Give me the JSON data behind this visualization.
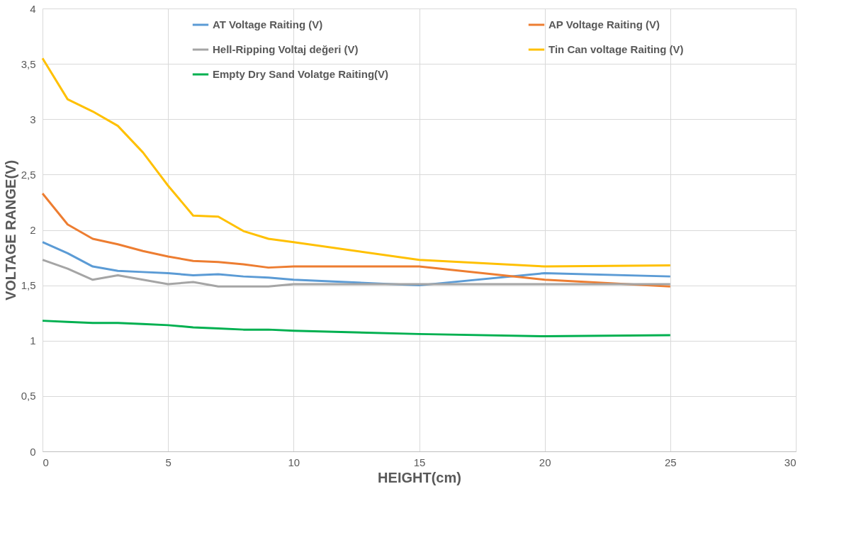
{
  "chart_data": {
    "type": "line",
    "xlabel": "HEIGHT(cm)",
    "ylabel": "VOLTAGE RANGE(V)",
    "x": [
      0,
      1,
      2,
      3,
      4,
      5,
      6,
      7,
      8,
      9,
      10,
      15,
      20,
      25
    ],
    "series": [
      {
        "name": "AT Voltage Raiting (V)",
        "color": "#5b9bd5",
        "values": [
          1.89,
          1.79,
          1.67,
          1.63,
          1.62,
          1.61,
          1.59,
          1.6,
          1.58,
          1.57,
          1.55,
          1.5,
          1.61,
          1.58
        ]
      },
      {
        "name": "AP Voltage Raiting (V)",
        "color": "#ed7d31",
        "values": [
          2.33,
          2.05,
          1.92,
          1.87,
          1.81,
          1.76,
          1.72,
          1.71,
          1.69,
          1.66,
          1.67,
          1.67,
          1.55,
          1.49
        ]
      },
      {
        "name": "Hell-Ripping Voltaj değeri (V)",
        "color": "#a5a5a5",
        "values": [
          1.73,
          1.65,
          1.55,
          1.59,
          1.55,
          1.51,
          1.53,
          1.49,
          1.49,
          1.49,
          1.51,
          1.51,
          1.51,
          1.51
        ]
      },
      {
        "name": "Tin Can voltage Raiting (V)",
        "color": "#ffc000",
        "values": [
          3.55,
          3.18,
          3.07,
          2.94,
          2.7,
          2.4,
          2.13,
          2.12,
          1.99,
          1.92,
          1.89,
          1.73,
          1.67,
          1.68
        ]
      },
      {
        "name": "Empty Dry Sand Volatge Raiting(V)",
        "color": "#00b050",
        "values": [
          1.18,
          1.17,
          1.16,
          1.16,
          1.15,
          1.14,
          1.12,
          1.11,
          1.1,
          1.1,
          1.09,
          1.06,
          1.04,
          1.05
        ]
      }
    ],
    "xlim": [
      0,
      30
    ],
    "xticks": [
      0,
      5,
      10,
      15,
      20,
      25,
      30
    ],
    "ylim": [
      0,
      4
    ],
    "yticks": [
      0,
      {
        "value": 0.5,
        "label": "0,5"
      },
      1,
      {
        "value": 1.5,
        "label": "1,5"
      },
      2,
      {
        "value": 2.5,
        "label": "2,5"
      },
      3,
      {
        "value": 3.5,
        "label": "3,5"
      },
      4
    ],
    "grid": true,
    "legend": "top",
    "marker": "none",
    "line_style": "solid"
  }
}
